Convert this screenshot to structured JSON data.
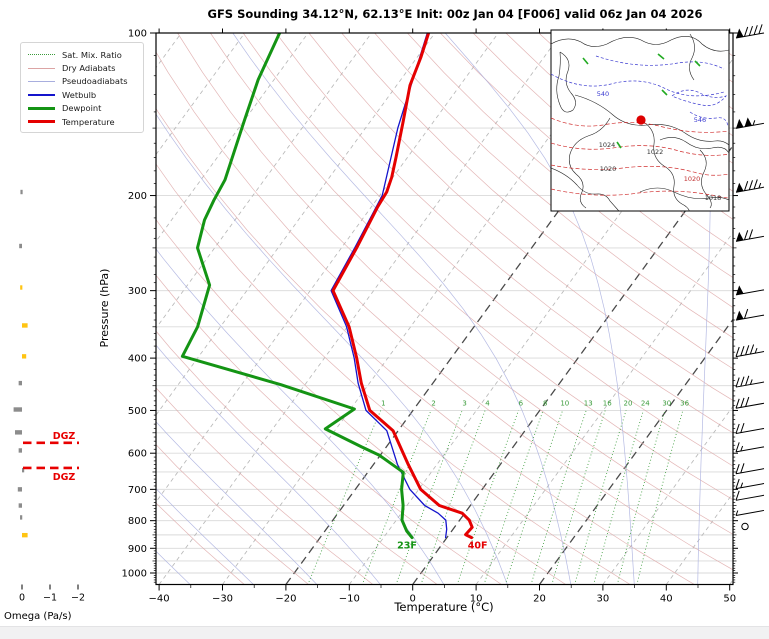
{
  "title": "GFS Sounding 34.12°N, 62.13°E Init: 00z Jan 04 [F006] valid 06z Jan 04 2026",
  "legend": {
    "items": [
      {
        "label": "Sat. Mix. Ratio",
        "color": "#3a9b3a",
        "style": "dotted",
        "weight": 1
      },
      {
        "label": "Dry Adiabats",
        "color": "#dca4a4",
        "style": "solid",
        "weight": 1
      },
      {
        "label": "Pseudoadiabats",
        "color": "#a8aede",
        "style": "solid",
        "weight": 1
      },
      {
        "label": "Wetbulb",
        "color": "#1414cc",
        "style": "solid",
        "weight": 2
      },
      {
        "label": "Dewpoint",
        "color": "#149414",
        "style": "solid",
        "weight": 3
      },
      {
        "label": "Temperature",
        "color": "#e50000",
        "style": "solid",
        "weight": 3
      }
    ]
  },
  "axes": {
    "pressure": {
      "label": "Pressure (hPa)",
      "unit": "hPa",
      "major_ticks": [
        100,
        200,
        300,
        400,
        500,
        600,
        700,
        800,
        900,
        1000
      ],
      "range": [
        100,
        1052
      ]
    },
    "temperature": {
      "label": "Temperature (°C)",
      "unit": "°C",
      "major_ticks": [
        -40,
        -30,
        -20,
        -10,
        0,
        10,
        20,
        30,
        40,
        50
      ],
      "range": [
        -40,
        50
      ]
    },
    "omega": {
      "label": "Omega (Pa/s)",
      "unit": "Pa/s",
      "tick_labels": [
        "0",
        "−1",
        "−2"
      ],
      "tick_values": [
        0,
        -1,
        -2
      ]
    }
  },
  "chart_data": {
    "type": "skewt-sounding",
    "pressure_unit": "hPa",
    "temperature_unit": "°C",
    "skew": "right-45",
    "series": [
      {
        "name": "Temperature",
        "color": "#e50000",
        "width": 3,
        "points": [
          [
            100,
            -61
          ],
          [
            111,
            -59.4
          ],
          [
            125,
            -57.9
          ],
          [
            146,
            -54.8
          ],
          [
            170,
            -51.8
          ],
          [
            185,
            -50.2
          ],
          [
            197,
            -49.3
          ],
          [
            210,
            -49.0
          ],
          [
            250,
            -47.6
          ],
          [
            300,
            -46.4
          ],
          [
            350,
            -39.7
          ],
          [
            400,
            -34.9
          ],
          [
            445,
            -31.3
          ],
          [
            500,
            -26.8
          ],
          [
            545,
            -20.8
          ],
          [
            630,
            -14.5
          ],
          [
            700,
            -9.7
          ],
          [
            750,
            -4.9
          ],
          [
            775,
            -0.4
          ],
          [
            798,
            1.5
          ],
          [
            823,
            2.8
          ],
          [
            849,
            2.6
          ],
          [
            860,
            3.9
          ]
        ]
      },
      {
        "name": "Dewpoint",
        "color": "#149414",
        "width": 3,
        "points": [
          [
            100,
            -84.5
          ],
          [
            122,
            -82.5
          ],
          [
            145,
            -80.0
          ],
          [
            187,
            -76.2
          ],
          [
            204,
            -75.6
          ],
          [
            222,
            -74.8
          ],
          [
            250,
            -72.7
          ],
          [
            293,
            -66.5
          ],
          [
            350,
            -63.6
          ],
          [
            397,
            -62.6
          ],
          [
            448,
            -43.8
          ],
          [
            497,
            -29.4
          ],
          [
            541,
            -31.7
          ],
          [
            584,
            -23.9
          ],
          [
            605,
            -20.2
          ],
          [
            651,
            -14.4
          ],
          [
            700,
            -12.7
          ],
          [
            750,
            -10.6
          ],
          [
            798,
            -9.1
          ],
          [
            836,
            -7.1
          ],
          [
            860,
            -5.5
          ]
        ]
      },
      {
        "name": "Wetbulb",
        "color": "#1414cc",
        "width": 1.3,
        "points": [
          [
            100,
            -61.2
          ],
          [
            150,
            -54.9
          ],
          [
            200,
            -49.6
          ],
          [
            250,
            -47.9
          ],
          [
            300,
            -46.7
          ],
          [
            350,
            -40.1
          ],
          [
            400,
            -35.3
          ],
          [
            445,
            -31.8
          ],
          [
            500,
            -27.4
          ],
          [
            545,
            -21.8
          ],
          [
            630,
            -16.2
          ],
          [
            700,
            -11.4
          ],
          [
            750,
            -7.2
          ],
          [
            775,
            -4.2
          ],
          [
            798,
            -2.2
          ],
          [
            830,
            -1.0
          ],
          [
            860,
            -0.2
          ]
        ]
      }
    ],
    "surface_annotations": [
      {
        "name": "surface-temperature",
        "text": "40F",
        "color": "#e50000"
      },
      {
        "name": "surface-dewpoint",
        "text": "23F",
        "color": "#149414"
      }
    ],
    "mixing_ratio_labels": [
      1,
      2,
      3,
      4,
      6,
      8,
      10,
      13,
      16,
      20,
      24,
      30,
      36
    ],
    "dgz": {
      "label": "DGZ",
      "top_hpa": 574,
      "bottom_hpa": 639,
      "color": "#e80000"
    },
    "omega_profile": [
      {
        "p": 197,
        "w": 0.02,
        "highlight": false
      },
      {
        "p": 248,
        "w": 0.1,
        "highlight": false
      },
      {
        "p": 296,
        "w": 0.03,
        "highlight": true
      },
      {
        "p": 348,
        "w": -0.2,
        "highlight": true
      },
      {
        "p": 397,
        "w": -0.15,
        "highlight": true
      },
      {
        "p": 445,
        "w": 0.12,
        "highlight": false
      },
      {
        "p": 498,
        "w": 0.3,
        "highlight": false
      },
      {
        "p": 549,
        "w": 0.25,
        "highlight": false
      },
      {
        "p": 593,
        "w": 0.12,
        "highlight": false
      },
      {
        "p": 645,
        "w": -0.04,
        "highlight": false
      },
      {
        "p": 700,
        "w": 0.15,
        "highlight": false
      },
      {
        "p": 750,
        "w": 0.12,
        "highlight": false
      },
      {
        "p": 789,
        "w": 0.07,
        "highlight": false
      },
      {
        "p": 851,
        "w": -0.2,
        "highlight": true
      }
    ],
    "wind_barbs_kt": [
      {
        "p": 100,
        "kt": 90
      },
      {
        "p": 147,
        "kt": 105
      },
      {
        "p": 193,
        "kt": 85
      },
      {
        "p": 238,
        "kt": 70
      },
      {
        "p": 299,
        "kt": 50
      },
      {
        "p": 333,
        "kt": 60
      },
      {
        "p": 389,
        "kt": 45
      },
      {
        "p": 443,
        "kt": 35
      },
      {
        "p": 485,
        "kt": 30
      },
      {
        "p": 540,
        "kt": 20
      },
      {
        "p": 584,
        "kt": 15
      },
      {
        "p": 641,
        "kt": 20
      },
      {
        "p": 683,
        "kt": 15
      },
      {
        "p": 718,
        "kt": 10
      },
      {
        "p": 766,
        "kt": 5
      },
      {
        "p": 820,
        "kt": 0
      }
    ],
    "background": {
      "isotherm_step_c": 10,
      "highlighted_isotherms_c": [
        -20,
        0,
        20
      ],
      "dry_adiabat_step_k": 10,
      "pseudoadiabat_step_k": 10
    }
  },
  "colors": {
    "temperature": "#e50000",
    "dewpoint": "#149414",
    "wetbulb": "#1414cc",
    "dry_adiabat": "#dca4a4",
    "pseudoadiabat": "#a8aede",
    "mixing_ratio": "#3a9b3a",
    "isotherm": "#b8b8b8",
    "isotherm_bold": "#4a4a4a",
    "gridline": "#d9d9d9",
    "omega_bar": "#8c8c8c",
    "omega_bar_highlight": "#ffc412",
    "dgz": "#e80000"
  },
  "inset_map": {
    "labels": [
      {
        "text": "540",
        "color": "#3a3ad0"
      },
      {
        "text": "546",
        "color": "#3a3ad0"
      },
      {
        "text": "1024",
        "color": "#333333"
      },
      {
        "text": "1022",
        "color": "#333333"
      },
      {
        "text": "1020",
        "color": "#333333"
      },
      {
        "text": "1020",
        "color": "#c03030"
      },
      {
        "text": "1018",
        "color": "#333333"
      }
    ],
    "marker_color": "#dd0000"
  }
}
